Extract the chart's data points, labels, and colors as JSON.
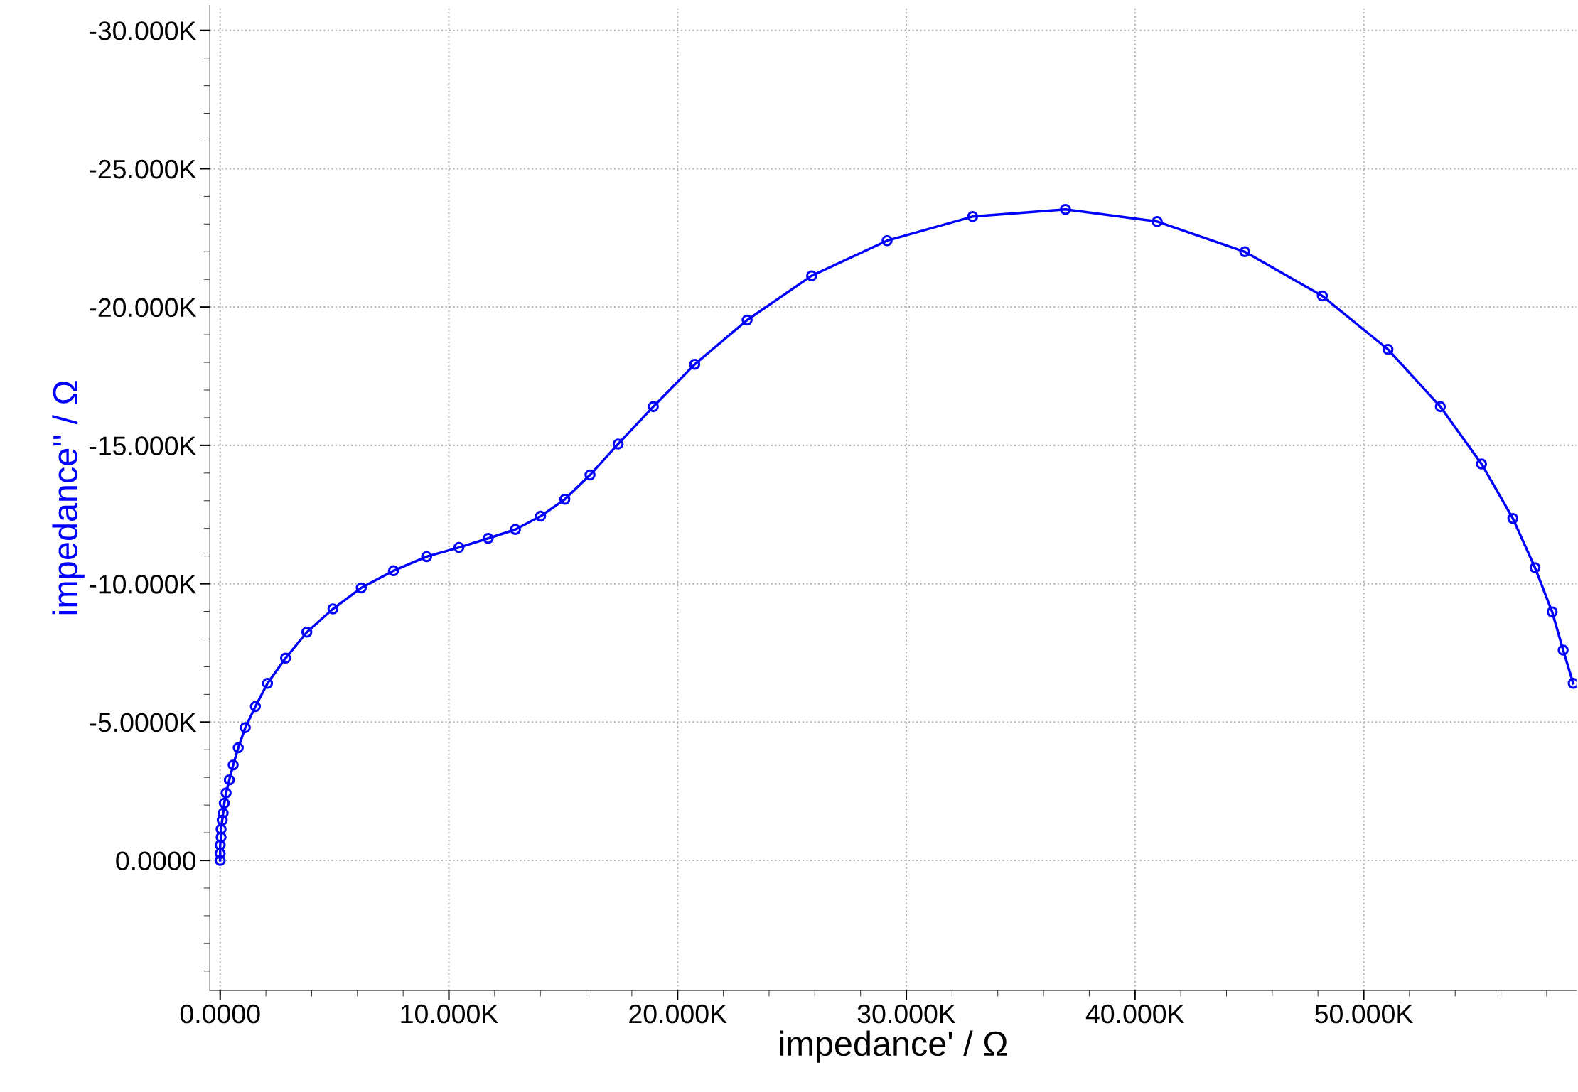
{
  "chart_data": {
    "type": "line",
    "xlabel": "impedance' / Ω",
    "ylabel": "impedance'' / Ω",
    "series": [
      {
        "color": "#0000ff",
        "x": [
          0,
          0,
          0,
          40,
          40,
          90,
          130,
          180,
          260,
          400,
          570,
          790,
          1100,
          1540,
          2070,
          2860,
          3790,
          4930,
          6170,
          7580,
          9030,
          10440,
          11720,
          12910,
          14010,
          15070,
          16170,
          17400,
          18940,
          20750,
          23040,
          25860,
          29160,
          32900,
          36960,
          40970,
          44800,
          48190,
          51060,
          53350,
          55150,
          56520,
          57490,
          58240,
          58720,
          59160
        ],
        "values": [
          0,
          -250,
          -550,
          -840,
          -1130,
          -1450,
          -1710,
          -2070,
          -2440,
          -2910,
          -3450,
          -4070,
          -4800,
          -5560,
          -6400,
          -7310,
          -8250,
          -9090,
          -9850,
          -10470,
          -10980,
          -11310,
          -11640,
          -11960,
          -12440,
          -13050,
          -13930,
          -15050,
          -16400,
          -17930,
          -19530,
          -21130,
          -22400,
          -23270,
          -23530,
          -23090,
          -22000,
          -20400,
          -18470,
          -16400,
          -14330,
          -12360,
          -10580,
          -8980,
          -7600,
          -6400
        ]
      }
    ],
    "xlim": [
      -450,
      59300
    ],
    "ylim": [
      4700,
      -30900
    ],
    "xticks": [
      {
        "value": 0,
        "label": "0.0000"
      },
      {
        "value": 10000,
        "label": "10.000K"
      },
      {
        "value": 20000,
        "label": "20.000K"
      },
      {
        "value": 30000,
        "label": "30.000K"
      },
      {
        "value": 40000,
        "label": "40.000K"
      },
      {
        "value": 50000,
        "label": "50.000K"
      }
    ],
    "yticks": [
      {
        "value": 0,
        "label": "0.0000"
      },
      {
        "value": -5000,
        "label": "-5.0000K"
      },
      {
        "value": -10000,
        "label": "-10.000K"
      },
      {
        "value": -15000,
        "label": "-15.000K"
      },
      {
        "value": -20000,
        "label": "-20.000K"
      },
      {
        "value": -25000,
        "label": "-25.000K"
      },
      {
        "value": -30000,
        "label": "-30.000K"
      }
    ],
    "grid": true,
    "marker": "circle",
    "line_style": "solid",
    "legend": false
  }
}
